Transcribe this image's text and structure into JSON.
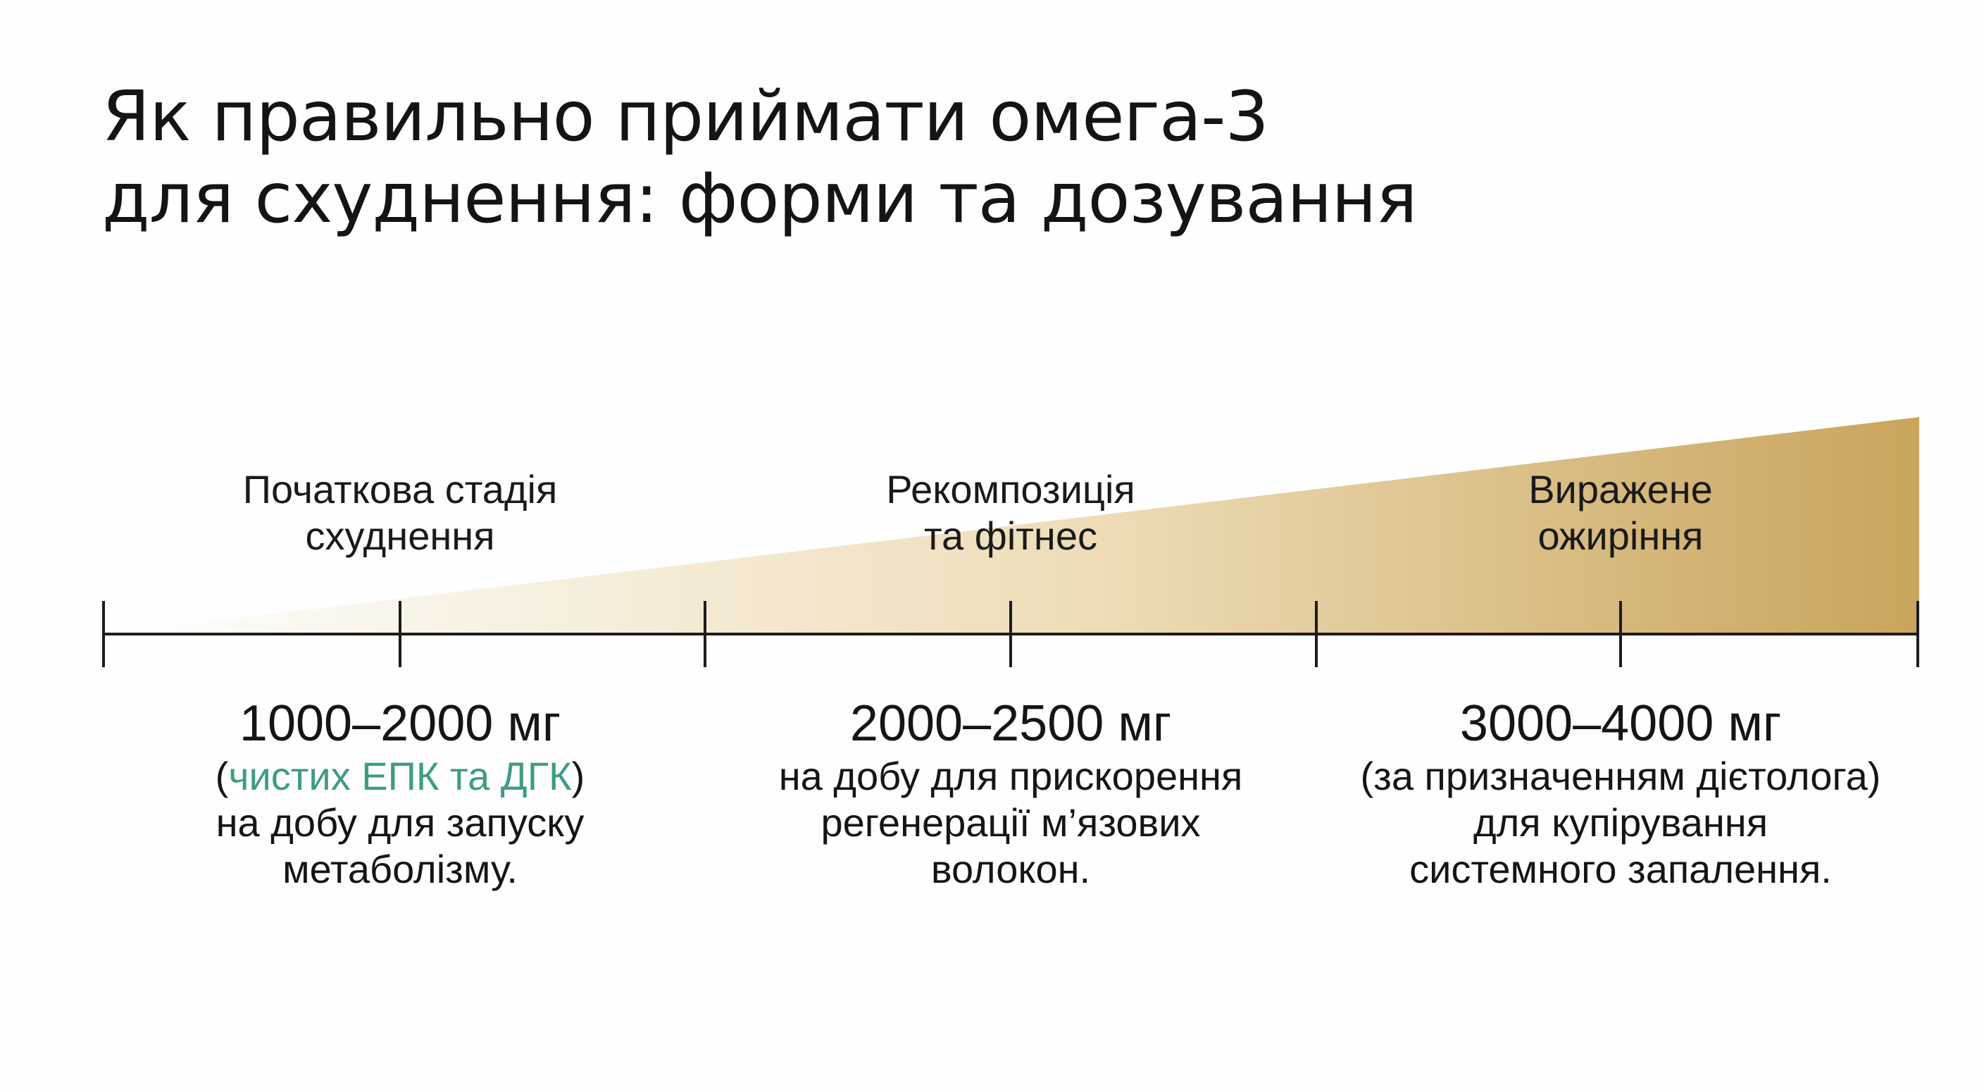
{
  "title": {
    "line1": "Як правильно приймати омега-3",
    "line2": "для схуднення: форми та дозування"
  },
  "stages": [
    {
      "line1": "Початкова стадія",
      "line2": "схуднення"
    },
    {
      "line1": "Рекомпозиція",
      "line2": "та фітнес"
    },
    {
      "line1": "Виражене",
      "line2": "ожиріння"
    }
  ],
  "doses": [
    {
      "amount": "1000–2000 мг",
      "line1": {
        "open": "(",
        "highlight": "чистих ЕПК та ДГК",
        "close": ")"
      },
      "line2": "на добу для запуску",
      "line3": "метаболізму."
    },
    {
      "amount": "2000–2500 мг",
      "line1": "на добу для прискорення",
      "line2": "регенерації м’язових",
      "line3": "волокон."
    },
    {
      "amount": "3000–4000 мг",
      "line1": "(за призначенням дієтолога)",
      "line2": "для купірування",
      "line3": "системного запалення."
    }
  ],
  "colors": {
    "accent": "#3f9b86",
    "wedge_start": "#ffffff",
    "wedge_end": "#c9a45c",
    "axis": "#1c1c1c",
    "text": "#141414"
  }
}
